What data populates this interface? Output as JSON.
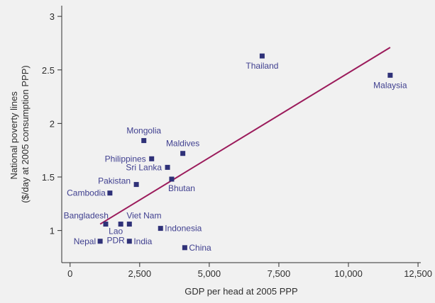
{
  "colors": {
    "background": "#f1f1f1",
    "axis": "#2e2e2e",
    "point": "#2f3178",
    "label": "#3f3f8f",
    "trendline": "#9b1b5b"
  },
  "chart_data": {
    "type": "scatter",
    "title": "",
    "xlabel": "GDP per head at 2005 PPP",
    "ylabel_lines": [
      "National poverty lines",
      "($/day at 2005 consumption PPP)"
    ],
    "xlim": [
      -300,
      12600
    ],
    "ylim": [
      0.7,
      3.1
    ],
    "xticks": [
      0,
      2500,
      5000,
      7500,
      10000,
      12500
    ],
    "xtick_labels": [
      "0",
      "2,500",
      "5,000",
      "7,500",
      "10,000",
      "12,500"
    ],
    "yticks": [
      1,
      1.5,
      2,
      2.5,
      3
    ],
    "ytick_labels": [
      "1",
      "1.5",
      "2",
      "2.5",
      "3"
    ],
    "grid": false,
    "points": [
      {
        "label": "Thailand",
        "x": 6900,
        "y": 2.63
      },
      {
        "label": "Malaysia",
        "x": 11500,
        "y": 2.45
      },
      {
        "label": "Mongolia",
        "x": 2650,
        "y": 1.84
      },
      {
        "label": "Maldives",
        "x": 4050,
        "y": 1.72
      },
      {
        "label": "Philippines",
        "x": 2930,
        "y": 1.67
      },
      {
        "label": "Sri Lanka",
        "x": 3500,
        "y": 1.59
      },
      {
        "label": "Bhutan",
        "x": 3650,
        "y": 1.48
      },
      {
        "label": "Pakistan",
        "x": 2380,
        "y": 1.43
      },
      {
        "label": "Cambodia",
        "x": 1430,
        "y": 1.35
      },
      {
        "label": "Bangladesh",
        "x": 1280,
        "y": 1.06
      },
      {
        "label": "Lao PDR",
        "label_lines": [
          "Lao",
          "PDR"
        ],
        "x": 1820,
        "y": 1.06
      },
      {
        "label": "Viet Nam",
        "x": 2130,
        "y": 1.06
      },
      {
        "label": "Indonesia",
        "x": 3250,
        "y": 1.02
      },
      {
        "label": "Nepal",
        "x": 1080,
        "y": 0.9
      },
      {
        "label": "India",
        "x": 2130,
        "y": 0.9
      },
      {
        "label": "China",
        "x": 4120,
        "y": 0.84
      }
    ],
    "trendline": {
      "x": [
        1080,
        11500
      ],
      "y": [
        1.06,
        2.71
      ]
    }
  }
}
